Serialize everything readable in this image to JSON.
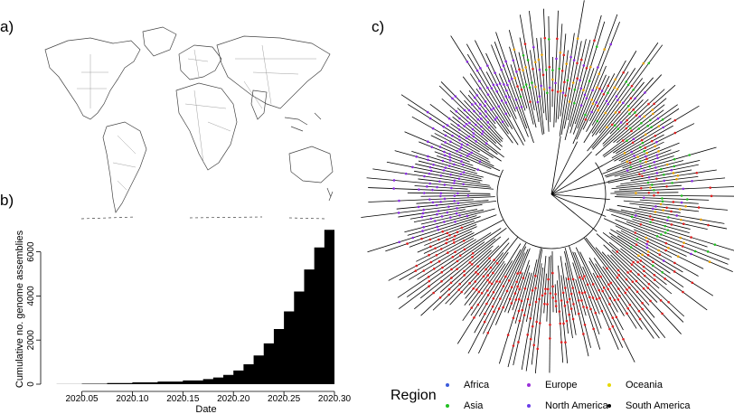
{
  "panels": {
    "a": "a)",
    "b": "b)",
    "c": "c)"
  },
  "chart_data": {
    "type": "area",
    "xlabel": "Date",
    "ylabel": "Cumulative no. genome assemblies",
    "xlim": [
      2020.02,
      2020.3
    ],
    "ylim": [
      0,
      7500
    ],
    "xticks": [
      "2020.05",
      "2020.10",
      "2020.15",
      "2020.20",
      "2020.25",
      "2020.30"
    ],
    "xtick_values": [
      2020.05,
      2020.1,
      2020.15,
      2020.2,
      2020.25,
      2020.3
    ],
    "yticks": [
      "0",
      "2000",
      "4000",
      "6000"
    ],
    "ytick_values": [
      0,
      2000,
      4000,
      6000
    ],
    "x": [
      2020.025,
      2020.05,
      2020.075,
      2020.1,
      2020.125,
      2020.15,
      2020.17,
      2020.18,
      2020.19,
      2020.2,
      2020.21,
      2020.22,
      2020.23,
      2020.24,
      2020.25,
      2020.26,
      2020.27,
      2020.28,
      2020.29,
      2020.3
    ],
    "y": [
      5,
      20,
      50,
      80,
      120,
      170,
      230,
      300,
      420,
      620,
      900,
      1300,
      1850,
      2500,
      3300,
      4200,
      5200,
      6200,
      7000,
      7500
    ],
    "color": "#000000"
  },
  "legend": {
    "title": "Region",
    "items": [
      {
        "label": "Africa",
        "color": "#3b5bdb"
      },
      {
        "label": "Europe",
        "color": "#9b30d9"
      },
      {
        "label": "Oceania",
        "color": "#e6d800"
      },
      {
        "label": "Asia",
        "color": "#22c022"
      },
      {
        "label": "North America",
        "color": "#6a3de8"
      },
      {
        "label": "South America",
        "color": "#000000"
      }
    ]
  },
  "tree": {
    "branch_color": "#000000",
    "tip_colors": [
      "#e02020",
      "#8a2be2",
      "#22c022",
      "#e6a000"
    ]
  }
}
